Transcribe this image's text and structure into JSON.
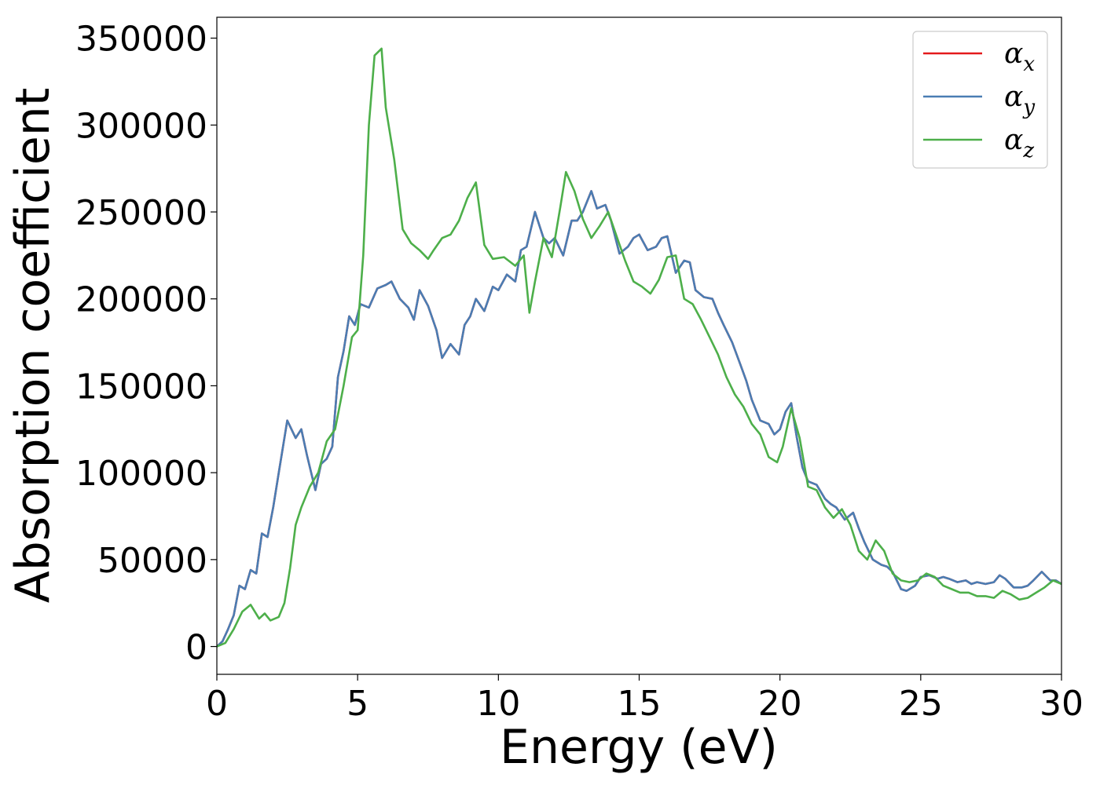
{
  "chart_data": {
    "type": "line",
    "title": "",
    "xlabel": "Energy (eV)",
    "ylabel": "Absorption coefficient",
    "xlim": [
      0,
      30
    ],
    "ylim": [
      -16000,
      362000
    ],
    "xticks": [
      0,
      5,
      10,
      15,
      20,
      25,
      30
    ],
    "yticks": [
      0,
      50000,
      100000,
      150000,
      200000,
      250000,
      300000,
      350000
    ],
    "grid": false,
    "legend_position": "top-right",
    "series": [
      {
        "name": "x",
        "color": "#e41a1c",
        "x": [
          0,
          0.2,
          0.4,
          0.6,
          0.8,
          1.0,
          1.2,
          1.4,
          1.6,
          1.8,
          2.0,
          2.2,
          2.5,
          2.8,
          3.0,
          3.2,
          3.5,
          3.7,
          3.9,
          4.1,
          4.3,
          4.5,
          4.7,
          4.9,
          5.1,
          5.4,
          5.7,
          6.0,
          6.2,
          6.5,
          6.8,
          7.0,
          7.2,
          7.5,
          7.8,
          8.0,
          8.3,
          8.6,
          8.8,
          9.0,
          9.2,
          9.5,
          9.8,
          10.0,
          10.3,
          10.6,
          10.8,
          11.0,
          11.3,
          11.6,
          11.8,
          12.0,
          12.3,
          12.6,
          12.8,
          13.0,
          13.3,
          13.5,
          13.8,
          14.0,
          14.3,
          14.6,
          14.8,
          15.0,
          15.3,
          15.6,
          15.8,
          16.0,
          16.3,
          16.6,
          16.8,
          17.0,
          17.3,
          17.6,
          17.8,
          18.0,
          18.3,
          18.6,
          18.8,
          19.0,
          19.3,
          19.6,
          19.8,
          20.0,
          20.2,
          20.4,
          20.6,
          20.8,
          21.0,
          21.3,
          21.6,
          21.8,
          22.0,
          22.3,
          22.6,
          22.8,
          23.0,
          23.3,
          23.6,
          23.8,
          24.0,
          24.3,
          24.5,
          24.8,
          25.0,
          25.3,
          25.6,
          25.8,
          26.0,
          26.3,
          26.6,
          26.8,
          27.0,
          27.3,
          27.6,
          27.8,
          28.0,
          28.3,
          28.6,
          28.8,
          29.0,
          29.3,
          29.6,
          29.8,
          30.0
        ],
        "values": [
          0,
          3000,
          10000,
          18000,
          35000,
          33000,
          44000,
          42000,
          65000,
          63000,
          80000,
          100000,
          130000,
          120000,
          125000,
          110000,
          90000,
          105000,
          108000,
          115000,
          155000,
          170000,
          190000,
          185000,
          197000,
          195000,
          206000,
          208000,
          210000,
          200000,
          195000,
          188000,
          205000,
          196000,
          182000,
          166000,
          174000,
          168000,
          185000,
          190000,
          200000,
          193000,
          207000,
          205000,
          214000,
          210000,
          228000,
          230000,
          250000,
          235000,
          232000,
          235000,
          225000,
          245000,
          245000,
          250000,
          262000,
          252000,
          254000,
          245000,
          226000,
          230000,
          235000,
          237000,
          228000,
          230000,
          235000,
          236000,
          215000,
          222000,
          221000,
          205000,
          201000,
          200000,
          192000,
          185000,
          175000,
          162000,
          153000,
          142000,
          130000,
          128000,
          122000,
          125000,
          135000,
          140000,
          120000,
          103000,
          95000,
          93000,
          85000,
          82000,
          80000,
          73000,
          77000,
          68000,
          60000,
          50000,
          47000,
          46000,
          43000,
          33000,
          32000,
          35000,
          40000,
          41000,
          39000,
          40000,
          39000,
          37000,
          38000,
          36000,
          37000,
          36000,
          37000,
          41000,
          39000,
          34000,
          34000,
          35000,
          38000,
          43000,
          38000,
          38000,
          36000
        ]
      },
      {
        "name": "y",
        "color": "#4a7db3",
        "x": [
          0,
          0.2,
          0.4,
          0.6,
          0.8,
          1.0,
          1.2,
          1.4,
          1.6,
          1.8,
          2.0,
          2.2,
          2.5,
          2.8,
          3.0,
          3.2,
          3.5,
          3.7,
          3.9,
          4.1,
          4.3,
          4.5,
          4.7,
          4.9,
          5.1,
          5.4,
          5.7,
          6.0,
          6.2,
          6.5,
          6.8,
          7.0,
          7.2,
          7.5,
          7.8,
          8.0,
          8.3,
          8.6,
          8.8,
          9.0,
          9.2,
          9.5,
          9.8,
          10.0,
          10.3,
          10.6,
          10.8,
          11.0,
          11.3,
          11.6,
          11.8,
          12.0,
          12.3,
          12.6,
          12.8,
          13.0,
          13.3,
          13.5,
          13.8,
          14.0,
          14.3,
          14.6,
          14.8,
          15.0,
          15.3,
          15.6,
          15.8,
          16.0,
          16.3,
          16.6,
          16.8,
          17.0,
          17.3,
          17.6,
          17.8,
          18.0,
          18.3,
          18.6,
          18.8,
          19.0,
          19.3,
          19.6,
          19.8,
          20.0,
          20.2,
          20.4,
          20.6,
          20.8,
          21.0,
          21.3,
          21.6,
          21.8,
          22.0,
          22.3,
          22.6,
          22.8,
          23.0,
          23.3,
          23.6,
          23.8,
          24.0,
          24.3,
          24.5,
          24.8,
          25.0,
          25.3,
          25.6,
          25.8,
          26.0,
          26.3,
          26.6,
          26.8,
          27.0,
          27.3,
          27.6,
          27.8,
          28.0,
          28.3,
          28.6,
          28.8,
          29.0,
          29.3,
          29.6,
          29.8,
          30.0
        ],
        "values": [
          0,
          3000,
          10000,
          18000,
          35000,
          33000,
          44000,
          42000,
          65000,
          63000,
          80000,
          100000,
          130000,
          120000,
          125000,
          110000,
          90000,
          105000,
          108000,
          115000,
          155000,
          170000,
          190000,
          185000,
          197000,
          195000,
          206000,
          208000,
          210000,
          200000,
          195000,
          188000,
          205000,
          196000,
          182000,
          166000,
          174000,
          168000,
          185000,
          190000,
          200000,
          193000,
          207000,
          205000,
          214000,
          210000,
          228000,
          230000,
          250000,
          235000,
          232000,
          235000,
          225000,
          245000,
          245000,
          250000,
          262000,
          252000,
          254000,
          245000,
          226000,
          230000,
          235000,
          237000,
          228000,
          230000,
          235000,
          236000,
          215000,
          222000,
          221000,
          205000,
          201000,
          200000,
          192000,
          185000,
          175000,
          162000,
          153000,
          142000,
          130000,
          128000,
          122000,
          125000,
          135000,
          140000,
          120000,
          103000,
          95000,
          93000,
          85000,
          82000,
          80000,
          73000,
          77000,
          68000,
          60000,
          50000,
          47000,
          46000,
          43000,
          33000,
          32000,
          35000,
          40000,
          41000,
          39000,
          40000,
          39000,
          37000,
          38000,
          36000,
          37000,
          36000,
          37000,
          41000,
          39000,
          34000,
          34000,
          35000,
          38000,
          43000,
          38000,
          38000,
          36000
        ]
      },
      {
        "name": "z",
        "color": "#4daf4a",
        "x": [
          0,
          0.3,
          0.6,
          0.9,
          1.2,
          1.5,
          1.7,
          1.9,
          2.2,
          2.4,
          2.6,
          2.8,
          3.0,
          3.3,
          3.6,
          3.9,
          4.2,
          4.5,
          4.8,
          5.0,
          5.2,
          5.4,
          5.6,
          5.85,
          6.0,
          6.3,
          6.6,
          6.9,
          7.2,
          7.5,
          7.7,
          8.0,
          8.3,
          8.6,
          8.9,
          9.2,
          9.5,
          9.8,
          10.2,
          10.6,
          10.9,
          11.1,
          11.3,
          11.6,
          11.9,
          12.2,
          12.4,
          12.7,
          13.0,
          13.3,
          13.6,
          13.9,
          14.2,
          14.5,
          14.8,
          15.1,
          15.4,
          15.7,
          16.0,
          16.3,
          16.6,
          16.9,
          17.2,
          17.5,
          17.8,
          18.1,
          18.4,
          18.7,
          19.0,
          19.3,
          19.6,
          19.9,
          20.1,
          20.4,
          20.7,
          21.0,
          21.3,
          21.6,
          21.9,
          22.2,
          22.5,
          22.8,
          23.1,
          23.4,
          23.7,
          24.0,
          24.3,
          24.6,
          24.9,
          25.2,
          25.5,
          25.8,
          26.1,
          26.4,
          26.7,
          27.0,
          27.3,
          27.6,
          27.9,
          28.2,
          28.5,
          28.8,
          29.1,
          29.4,
          29.7,
          30.0
        ],
        "values": [
          0,
          2000,
          10000,
          20000,
          24000,
          16000,
          19000,
          15000,
          17000,
          25000,
          45000,
          70000,
          80000,
          92000,
          100000,
          118000,
          125000,
          150000,
          178000,
          182000,
          225000,
          300000,
          340000,
          344000,
          310000,
          280000,
          240000,
          232000,
          228000,
          223000,
          228000,
          235000,
          237000,
          245000,
          258000,
          267000,
          231000,
          223000,
          224000,
          219000,
          225000,
          192000,
          210000,
          235000,
          224000,
          253000,
          273000,
          262000,
          246000,
          235000,
          242000,
          250000,
          236000,
          222000,
          210000,
          207000,
          203000,
          211000,
          224000,
          225000,
          200000,
          197000,
          188000,
          178000,
          168000,
          155000,
          145000,
          138000,
          128000,
          122000,
          109000,
          106000,
          115000,
          137000,
          120000,
          92000,
          90000,
          80000,
          74000,
          79000,
          70000,
          55000,
          50000,
          61000,
          55000,
          42000,
          38000,
          37000,
          38000,
          42000,
          40000,
          35000,
          33000,
          31000,
          31000,
          29000,
          29000,
          28000,
          32000,
          30000,
          27000,
          28000,
          31000,
          34000,
          38000,
          36000
        ]
      }
    ]
  }
}
